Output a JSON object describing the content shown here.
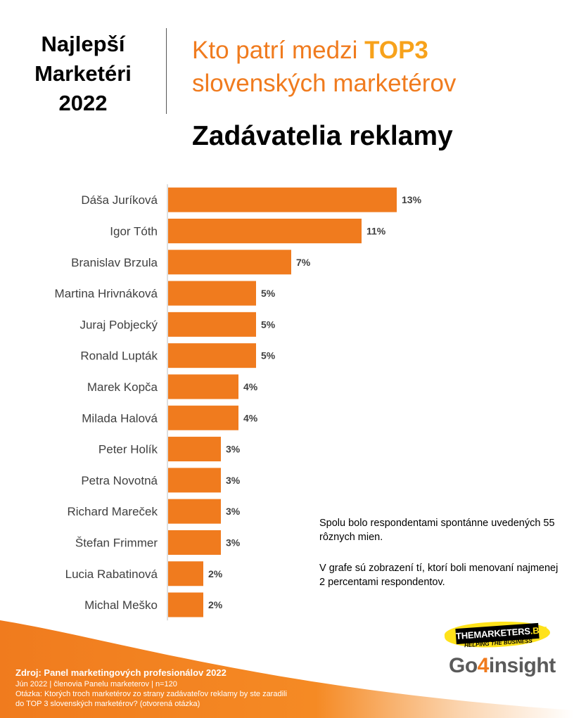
{
  "brand": {
    "line1": "Najlepší",
    "line2": "Marketéri",
    "line3": "2022"
  },
  "headline": {
    "part1": "Kto patrí medzi ",
    "highlight": "TOP3",
    "line2": "slovenských marketérov"
  },
  "subtitle": "Zadávatelia reklamy",
  "chart_data": {
    "type": "bar",
    "orientation": "horizontal",
    "categories": [
      "Dáša Juríková",
      "Igor Tóth",
      "Branislav Brzula",
      "Martina Hrivnáková",
      "Juraj Pobjecký",
      "Ronald Lupták",
      "Marek Kopča",
      "Milada Halová",
      "Peter Holík",
      "Petra Novotná",
      "Richard Mareček",
      "Štefan Frimmer",
      "Lucia Rabatinová",
      "Michal Meško"
    ],
    "values": [
      13,
      11,
      7,
      5,
      5,
      5,
      4,
      4,
      3,
      3,
      3,
      3,
      2,
      2
    ],
    "value_labels": [
      "13%",
      "11%",
      "7%",
      "5%",
      "5%",
      "5%",
      "4%",
      "4%",
      "3%",
      "3%",
      "3%",
      "3%",
      "2%",
      "2%"
    ],
    "unit": "%",
    "xlim": [
      0,
      14
    ],
    "grid": false,
    "bar_color": "#f07b1e"
  },
  "notes": {
    "note1": "Spolu bolo respondentami spontánne uvedených  55 rôznych  mien.",
    "note2": "V grafe sú zobrazení  tí,  ktorí boli menovaní najmenej 2 percentami  respondentov."
  },
  "logos": {
    "tm_part1": "THE",
    "tm_part2": "MARKETERS",
    "tm_part3": ".BIZ",
    "tm_tagline": "HELPING THE BUSINESS",
    "go_part1": "Go",
    "go_part2": "4",
    "go_part3": "insight"
  },
  "source": {
    "title": "Zdroj: Panel marketingových profesionálov  2022",
    "line1": "Jún 2022 | členovia Panelu marketerov | n=120",
    "line2": "Otázka:  Ktorých troch marketérov zo  strany zadávateľov reklamy by ste zaradili",
    "line3": "do TOP 3 slovenských marketérov? (otvorená otázka)"
  },
  "colors": {
    "accent_orange": "#f07b1e",
    "highlight_yellow": "#f7a21b",
    "band_orange": "#f07b1e"
  }
}
